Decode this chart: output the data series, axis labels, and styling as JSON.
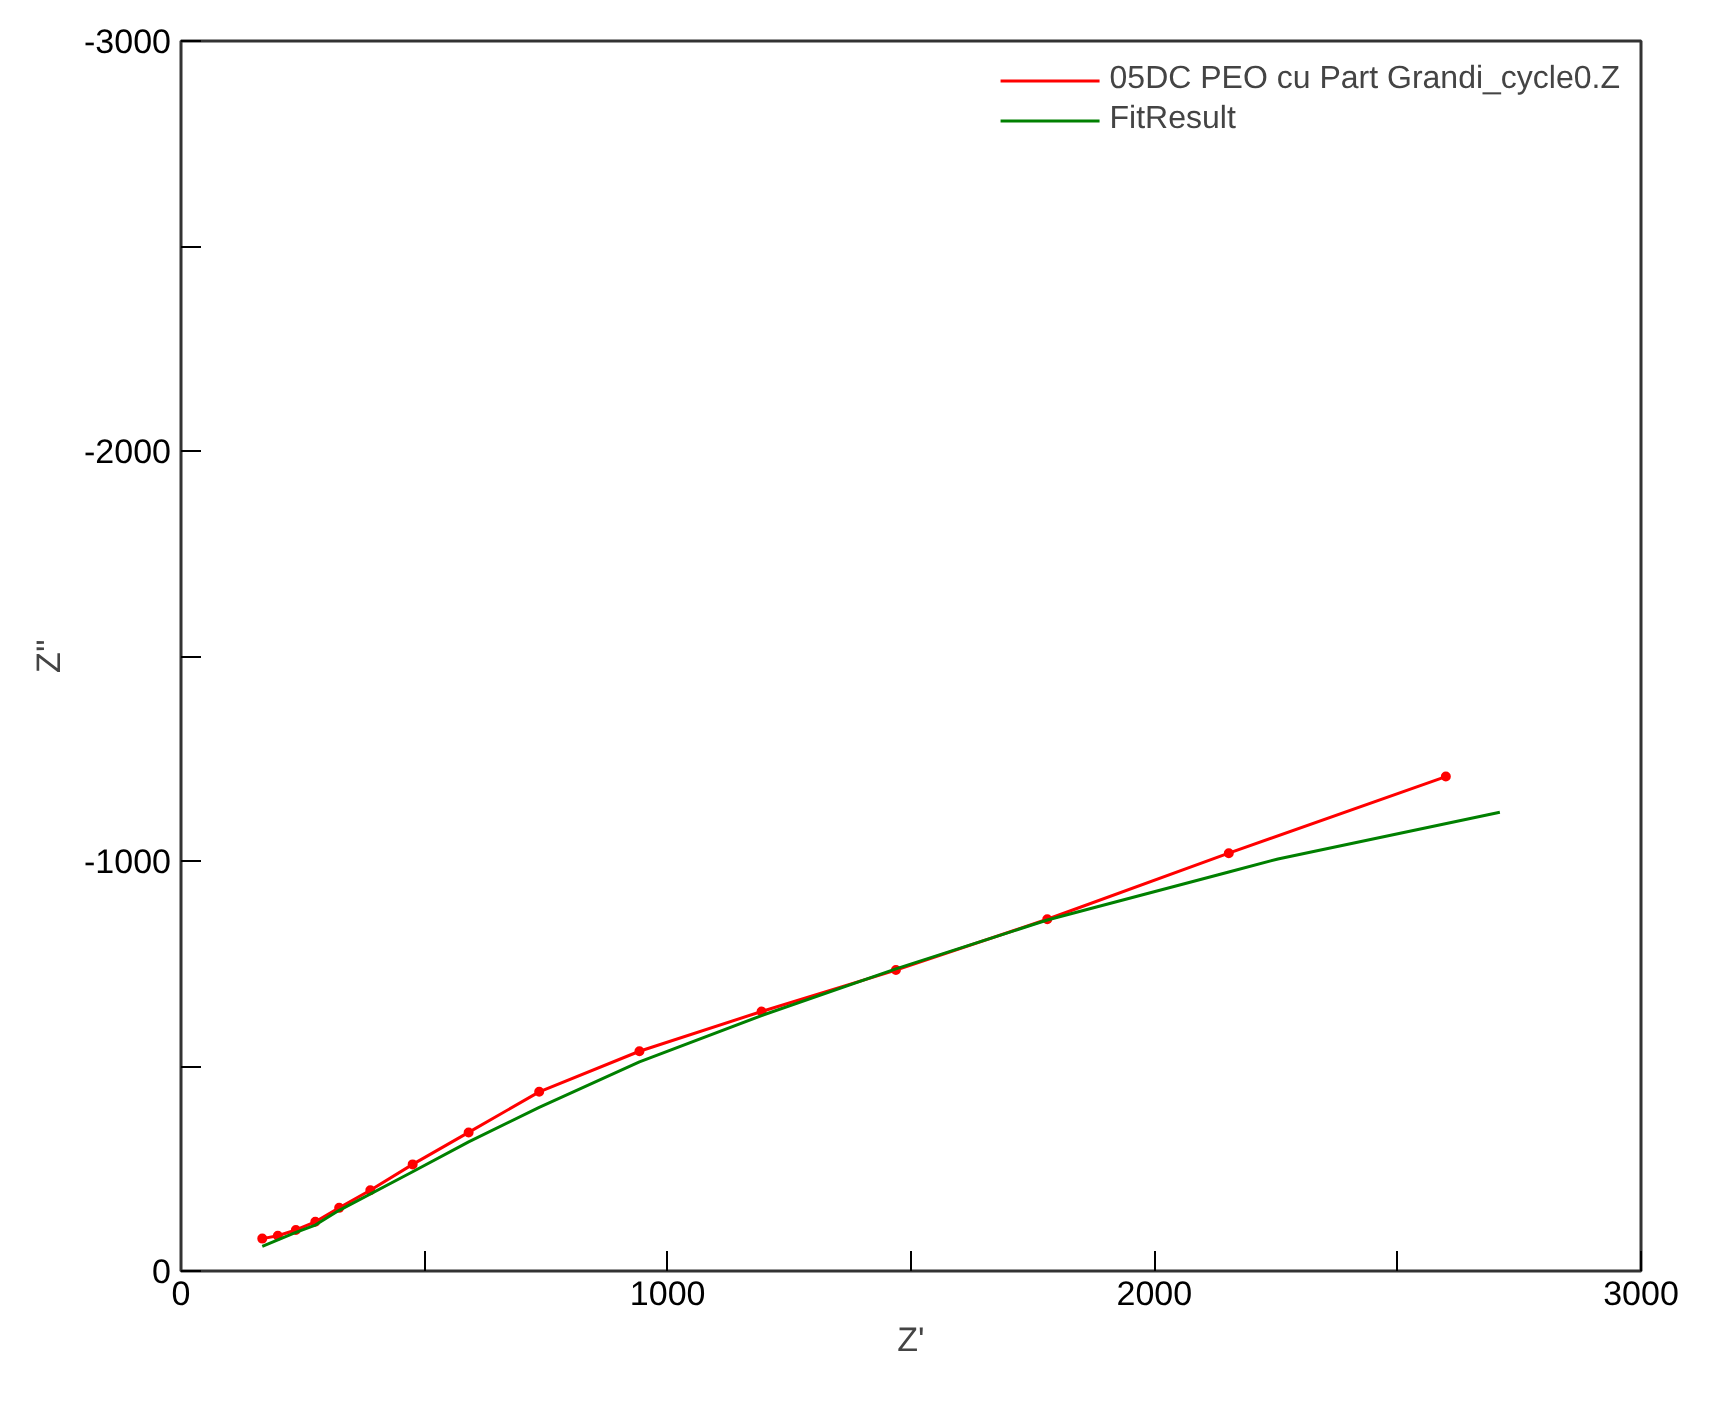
{
  "chart_data": {
    "type": "line",
    "xlabel": "Z'",
    "ylabel": "Z''",
    "xlim": [
      0,
      3000
    ],
    "ylim": [
      0,
      -3000
    ],
    "xticks": [
      0,
      {
        "value": 500,
        "label": null
      },
      1000,
      {
        "value": 1500,
        "label": null
      },
      2000,
      {
        "value": 2500,
        "label": null
      },
      3000
    ],
    "yticks": [
      0,
      {
        "value": -500,
        "label": null
      },
      -1000,
      {
        "value": -1500,
        "label": null
      },
      -2000,
      {
        "value": -2500,
        "label": null
      },
      -3000
    ],
    "grid": false,
    "legend": "top right",
    "series": [
      {
        "name": "05DC PEO cu Part Grandi_cycle0.Z",
        "color": "#ff0000",
        "marker": "circle",
        "x": [
          167,
          199,
          236,
          276,
          325,
          389,
          476,
          591,
          736,
          942,
          1193,
          1469,
          1780,
          2153,
          2599
        ],
        "values": [
          -79,
          -86,
          -100,
          -120,
          -154,
          -197,
          -260,
          -338,
          -437,
          -536,
          -633,
          -734,
          -858,
          -1019,
          -1206
        ]
      },
      {
        "name": "FitResult",
        "color": "#008000",
        "marker": "none",
        "x": [
          167,
          236,
          276,
          325,
          476,
          591,
          736,
          942,
          1193,
          1469,
          1780,
          2153,
          2254,
          2710
        ],
        "values": [
          -60,
          -94,
          -112,
          -148,
          -242,
          -315,
          -399,
          -510,
          -623,
          -737,
          -856,
          -973,
          -1005,
          -1119
        ]
      }
    ]
  }
}
